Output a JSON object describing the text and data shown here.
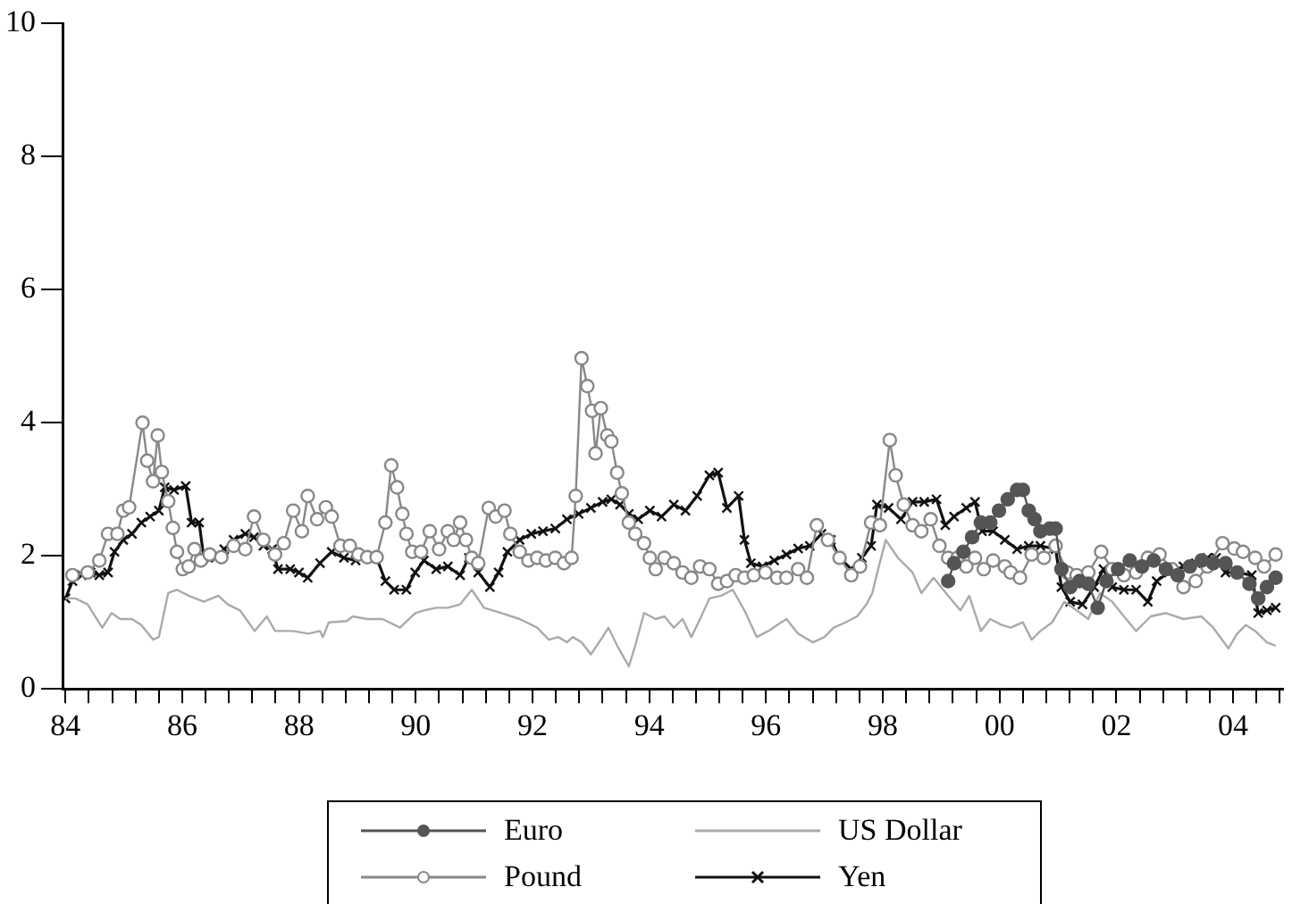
{
  "chart_data": {
    "type": "line",
    "xlim": [
      1983.95,
      2004.85
    ],
    "xticks": [
      {
        "value": 1984,
        "label": "84"
      },
      {
        "value": 1984.4,
        "label": null
      },
      {
        "value": 1984.8,
        "label": null
      },
      {
        "value": 1985.2,
        "label": null
      },
      {
        "value": 1985.6,
        "label": null
      },
      {
        "value": 1986,
        "label": "86"
      },
      {
        "value": 1986.4,
        "label": null
      },
      {
        "value": 1986.8,
        "label": null
      },
      {
        "value": 1987.2,
        "label": null
      },
      {
        "value": 1987.6,
        "label": null
      },
      {
        "value": 1988,
        "label": "88"
      },
      {
        "value": 1988.4,
        "label": null
      },
      {
        "value": 1988.8,
        "label": null
      },
      {
        "value": 1989.2,
        "label": null
      },
      {
        "value": 1989.6,
        "label": null
      },
      {
        "value": 1990,
        "label": "90"
      },
      {
        "value": 1990.4,
        "label": null
      },
      {
        "value": 1990.8,
        "label": null
      },
      {
        "value": 1991.2,
        "label": null
      },
      {
        "value": 1991.6,
        "label": null
      },
      {
        "value": 1992,
        "label": "92"
      },
      {
        "value": 1992.4,
        "label": null
      },
      {
        "value": 1992.8,
        "label": null
      },
      {
        "value": 1993.2,
        "label": null
      },
      {
        "value": 1993.6,
        "label": null
      },
      {
        "value": 1994,
        "label": "94"
      },
      {
        "value": 1994.4,
        "label": null
      },
      {
        "value": 1994.8,
        "label": null
      },
      {
        "value": 1995.2,
        "label": null
      },
      {
        "value": 1995.6,
        "label": null
      },
      {
        "value": 1996,
        "label": "96"
      },
      {
        "value": 1996.4,
        "label": null
      },
      {
        "value": 1996.8,
        "label": null
      },
      {
        "value": 1997.2,
        "label": null
      },
      {
        "value": 1997.6,
        "label": null
      },
      {
        "value": 1998,
        "label": "98"
      },
      {
        "value": 1998.4,
        "label": null
      },
      {
        "value": 1998.8,
        "label": null
      },
      {
        "value": 1999.2,
        "label": null
      },
      {
        "value": 1999.6,
        "label": null
      },
      {
        "value": 2000,
        "label": "00"
      },
      {
        "value": 2000.4,
        "label": null
      },
      {
        "value": 2000.8,
        "label": null
      },
      {
        "value": 2001.2,
        "label": null
      },
      {
        "value": 2001.6,
        "label": null
      },
      {
        "value": 2002,
        "label": "02"
      },
      {
        "value": 2002.4,
        "label": null
      },
      {
        "value": 2002.8,
        "label": null
      },
      {
        "value": 2003.2,
        "label": null
      },
      {
        "value": 2003.6,
        "label": null
      },
      {
        "value": 2004,
        "label": "04"
      },
      {
        "value": 2004.4,
        "label": null
      },
      {
        "value": 2004.8,
        "label": null
      }
    ],
    "ylim": [
      0,
      10
    ],
    "yticks": [
      0,
      2,
      4,
      6,
      8,
      10
    ],
    "legend": "bottom",
    "series": [
      {
        "name": "Euro",
        "color": "#555555",
        "marker": "circle",
        "x": [
          1999.12,
          1999.22,
          1999.38,
          1999.53,
          1999.68,
          1999.84,
          1999.99,
          2000.14,
          2000.3,
          2000.4,
          2000.5,
          2000.6,
          2000.7,
          2000.86,
          2000.96,
          2001.06,
          2001.21,
          2001.37,
          2001.52,
          2001.68,
          2001.83,
          2002.03,
          2002.23,
          2002.44,
          2002.64,
          2002.85,
          2003.05,
          2003.26,
          2003.46,
          2003.66,
          2003.87,
          2004.07,
          2004.28,
          2004.43,
          2004.58,
          2004.73
        ],
        "values": [
          1.62,
          1.89,
          2.06,
          2.28,
          2.5,
          2.5,
          2.68,
          2.85,
          2.99,
          2.99,
          2.68,
          2.55,
          2.37,
          2.41,
          2.41,
          1.8,
          1.53,
          1.62,
          1.58,
          1.22,
          1.62,
          1.8,
          1.93,
          1.84,
          1.93,
          1.8,
          1.71,
          1.84,
          1.93,
          1.89,
          1.89,
          1.75,
          1.58,
          1.36,
          1.53,
          1.67
        ]
      },
      {
        "name": "Pound",
        "color": "#888888",
        "marker": "circle_open",
        "x": [
          1984.12,
          1984.38,
          1984.58,
          1984.73,
          1984.89,
          1984.99,
          1985.09,
          1985.32,
          1985.4,
          1985.5,
          1985.58,
          1985.65,
          1985.76,
          1985.84,
          1985.91,
          1986.01,
          1986.11,
          1986.21,
          1986.32,
          1986.47,
          1986.67,
          1986.88,
          1987.08,
          1987.23,
          1987.39,
          1987.59,
          1987.74,
          1987.9,
          1988.05,
          1988.15,
          1988.31,
          1988.46,
          1988.56,
          1988.71,
          1988.87,
          1989.02,
          1989.17,
          1989.33,
          1989.48,
          1989.58,
          1989.68,
          1989.77,
          1989.84,
          1989.94,
          1990.09,
          1990.24,
          1990.4,
          1990.55,
          1990.65,
          1990.76,
          1990.86,
          1990.96,
          1991.07,
          1991.25,
          1991.37,
          1991.52,
          1991.62,
          1991.78,
          1991.93,
          1992.08,
          1992.23,
          1992.39,
          1992.54,
          1992.67,
          1992.74,
          1992.84,
          1992.94,
          1993.02,
          1993.08,
          1993.17,
          1993.28,
          1993.35,
          1993.45,
          1993.53,
          1993.65,
          1993.76,
          1993.91,
          1994.01,
          1994.11,
          1994.26,
          1994.42,
          1994.57,
          1994.72,
          1994.87,
          1995.03,
          1995.18,
          1995.33,
          1995.48,
          1995.63,
          1995.79,
          1995.99,
          1996.19,
          1996.35,
          1996.55,
          1996.7,
          1996.87,
          1997.06,
          1997.26,
          1997.46,
          1997.61,
          1997.8,
          1997.95,
          1998.12,
          1998.22,
          1998.36,
          1998.51,
          1998.66,
          1998.82,
          1998.97,
          1999.12,
          1999.28,
          1999.43,
          1999.58,
          1999.73,
          1999.89,
          2000.09,
          2000.19,
          2000.35,
          2000.55,
          2000.76,
          2000.96,
          2001.16,
          2001.32,
          2001.52,
          2001.74,
          2001.93,
          2002.13,
          2002.34,
          2002.54,
          2002.74,
          2002.95,
          2003.15,
          2003.36,
          2003.56,
          2003.82,
          2004.02,
          2004.17,
          2004.38,
          2004.53,
          2004.73
        ],
        "values": [
          1.71,
          1.75,
          1.93,
          2.33,
          2.33,
          2.68,
          2.73,
          4.0,
          3.43,
          3.12,
          3.81,
          3.26,
          2.82,
          2.42,
          2.06,
          1.8,
          1.84,
          2.1,
          1.93,
          2.02,
          1.98,
          2.15,
          2.1,
          2.59,
          2.24,
          2.02,
          2.19,
          2.68,
          2.37,
          2.9,
          2.55,
          2.73,
          2.59,
          2.15,
          2.15,
          2.02,
          1.98,
          1.98,
          2.5,
          3.36,
          3.03,
          2.63,
          2.33,
          2.06,
          2.06,
          2.37,
          2.1,
          2.37,
          2.24,
          2.5,
          2.24,
          1.97,
          1.89,
          2.72,
          2.59,
          2.68,
          2.33,
          2.06,
          1.93,
          1.97,
          1.93,
          1.97,
          1.89,
          1.97,
          2.9,
          4.97,
          4.55,
          4.18,
          3.54,
          4.22,
          3.81,
          3.72,
          3.25,
          2.94,
          2.5,
          2.33,
          2.19,
          1.97,
          1.8,
          1.97,
          1.89,
          1.75,
          1.67,
          1.84,
          1.8,
          1.58,
          1.62,
          1.71,
          1.67,
          1.71,
          1.75,
          1.67,
          1.67,
          1.8,
          1.67,
          2.46,
          2.24,
          1.97,
          1.71,
          1.84,
          2.5,
          2.46,
          3.74,
          3.21,
          2.77,
          2.46,
          2.37,
          2.55,
          2.15,
          1.97,
          1.97,
          1.84,
          1.97,
          1.8,
          1.93,
          1.84,
          1.75,
          1.67,
          2.02,
          1.97,
          2.15,
          1.75,
          1.71,
          1.75,
          2.06,
          1.8,
          1.71,
          1.75,
          1.97,
          2.02,
          1.8,
          1.53,
          1.62,
          1.84,
          2.19,
          2.11,
          2.06,
          1.97,
          1.84,
          2.02
        ]
      },
      {
        "name": "US Dollar",
        "color": "#aaaaaa",
        "marker": "none",
        "x": [
          1984.0,
          1984.17,
          1984.38,
          1984.63,
          1984.79,
          1984.94,
          1985.14,
          1985.3,
          1985.5,
          1985.6,
          1985.76,
          1985.91,
          1986.11,
          1986.37,
          1986.62,
          1986.78,
          1986.99,
          1987.24,
          1987.45,
          1987.59,
          1987.9,
          1988.16,
          1988.36,
          1988.41,
          1988.51,
          1988.82,
          1988.92,
          1989.17,
          1989.43,
          1989.73,
          1989.99,
          1990.14,
          1990.35,
          1990.55,
          1990.76,
          1990.96,
          1991.17,
          1991.47,
          1991.78,
          1992.08,
          1992.28,
          1992.44,
          1992.59,
          1992.69,
          1992.84,
          1993.0,
          1993.2,
          1993.3,
          1993.45,
          1993.65,
          1993.76,
          1993.91,
          1994.11,
          1994.26,
          1994.42,
          1994.57,
          1994.72,
          1994.87,
          1995.03,
          1995.23,
          1995.43,
          1995.63,
          1995.84,
          1996.04,
          1996.19,
          1996.35,
          1996.55,
          1996.8,
          1997.0,
          1997.16,
          1997.36,
          1997.56,
          1997.72,
          1997.82,
          1997.92,
          1998.05,
          1998.26,
          1998.51,
          1998.66,
          1998.87,
          1999.12,
          1999.33,
          1999.48,
          1999.68,
          1999.84,
          2000.04,
          2000.19,
          2000.4,
          2000.55,
          2000.7,
          2000.9,
          2001.11,
          2001.32,
          2001.52,
          2001.72,
          2001.93,
          2002.13,
          2002.34,
          2002.59,
          2002.85,
          2003.15,
          2003.46,
          2003.66,
          2003.92,
          2004.07,
          2004.22,
          2004.38,
          2004.58,
          2004.73
        ],
        "values": [
          1.36,
          1.36,
          1.27,
          0.92,
          1.14,
          1.05,
          1.05,
          0.96,
          0.74,
          0.78,
          1.44,
          1.49,
          1.4,
          1.31,
          1.4,
          1.27,
          1.18,
          0.87,
          1.09,
          0.87,
          0.87,
          0.83,
          0.87,
          0.78,
          1.0,
          1.02,
          1.09,
          1.05,
          1.05,
          0.92,
          1.14,
          1.18,
          1.22,
          1.22,
          1.27,
          1.49,
          1.22,
          1.14,
          1.05,
          0.92,
          0.74,
          0.78,
          0.7,
          0.78,
          0.7,
          0.52,
          0.78,
          0.92,
          0.65,
          0.34,
          0.65,
          1.14,
          1.05,
          1.09,
          0.92,
          1.05,
          0.78,
          1.05,
          1.36,
          1.4,
          1.49,
          1.18,
          0.78,
          0.87,
          0.96,
          1.05,
          0.83,
          0.7,
          0.78,
          0.92,
          1.0,
          1.09,
          1.27,
          1.44,
          1.8,
          2.24,
          1.97,
          1.75,
          1.44,
          1.67,
          1.4,
          1.18,
          1.4,
          0.87,
          1.05,
          0.96,
          0.92,
          1.0,
          0.74,
          0.87,
          1.0,
          1.31,
          1.18,
          1.05,
          1.44,
          1.31,
          1.09,
          0.87,
          1.09,
          1.14,
          1.05,
          1.09,
          0.92,
          0.61,
          0.83,
          0.96,
          0.87,
          0.7,
          0.65
        ]
      },
      {
        "name": "Yen",
        "color": "#111111",
        "marker": "cross",
        "x": [
          1984.0,
          1984.12,
          1984.28,
          1984.43,
          1984.58,
          1984.73,
          1984.84,
          1984.99,
          1985.14,
          1985.3,
          1985.45,
          1985.6,
          1985.7,
          1985.86,
          1986.06,
          1986.16,
          1986.29,
          1986.37,
          1986.57,
          1986.72,
          1986.88,
          1987.08,
          1987.23,
          1987.39,
          1987.54,
          1987.64,
          1987.85,
          1988.0,
          1988.15,
          1988.36,
          1988.56,
          1988.77,
          1988.97,
          1989.17,
          1989.33,
          1989.48,
          1989.63,
          1989.84,
          1989.99,
          1990.14,
          1990.35,
          1990.55,
          1990.76,
          1990.91,
          1991.07,
          1991.27,
          1991.42,
          1991.57,
          1991.78,
          1991.98,
          1992.18,
          1992.39,
          1992.59,
          1992.79,
          1993.0,
          1993.2,
          1993.35,
          1993.5,
          1993.65,
          1993.81,
          1994.01,
          1994.21,
          1994.42,
          1994.62,
          1994.82,
          1995.03,
          1995.18,
          1995.33,
          1995.53,
          1995.63,
          1995.74,
          1995.94,
          1996.14,
          1996.35,
          1996.55,
          1996.75,
          1996.95,
          1997.11,
          1997.26,
          1997.46,
          1997.64,
          1997.8,
          1997.9,
          1998.1,
          1998.31,
          1998.51,
          1998.71,
          1998.92,
          1999.07,
          1999.22,
          1999.43,
          1999.58,
          1999.7,
          1999.89,
          2000.09,
          2000.3,
          2000.5,
          2000.7,
          2000.96,
          2001.06,
          2001.21,
          2001.42,
          2001.62,
          2001.78,
          2001.93,
          2002.13,
          2002.34,
          2002.54,
          2002.69,
          2002.9,
          2003.15,
          2003.36,
          2003.56,
          2003.71,
          2003.87,
          2004.07,
          2004.32,
          2004.43,
          2004.58,
          2004.73
        ],
        "values": [
          1.36,
          1.62,
          1.71,
          1.75,
          1.71,
          1.75,
          2.06,
          2.24,
          2.33,
          2.5,
          2.59,
          2.68,
          3.03,
          2.99,
          3.05,
          2.5,
          2.5,
          1.97,
          1.97,
          2.1,
          2.24,
          2.33,
          2.28,
          2.15,
          2.1,
          1.8,
          1.8,
          1.75,
          1.67,
          1.89,
          2.06,
          1.97,
          1.93,
          1.97,
          1.97,
          1.62,
          1.49,
          1.49,
          1.75,
          1.93,
          1.8,
          1.84,
          1.71,
          1.97,
          1.75,
          1.53,
          1.75,
          2.06,
          2.24,
          2.33,
          2.37,
          2.41,
          2.55,
          2.63,
          2.72,
          2.81,
          2.85,
          2.77,
          2.63,
          2.55,
          2.68,
          2.59,
          2.77,
          2.68,
          2.9,
          3.21,
          3.25,
          2.72,
          2.9,
          2.24,
          1.89,
          1.84,
          1.93,
          2.02,
          2.11,
          2.15,
          2.33,
          2.24,
          1.97,
          1.8,
          1.97,
          2.15,
          2.77,
          2.72,
          2.55,
          2.81,
          2.81,
          2.85,
          2.46,
          2.59,
          2.72,
          2.81,
          2.37,
          2.37,
          2.24,
          2.1,
          2.15,
          2.15,
          2.1,
          1.53,
          1.31,
          1.27,
          1.53,
          1.8,
          1.53,
          1.49,
          1.49,
          1.31,
          1.62,
          1.75,
          1.84,
          1.89,
          1.97,
          1.97,
          1.75,
          1.75,
          1.71,
          1.14,
          1.18,
          1.22
        ]
      }
    ]
  }
}
